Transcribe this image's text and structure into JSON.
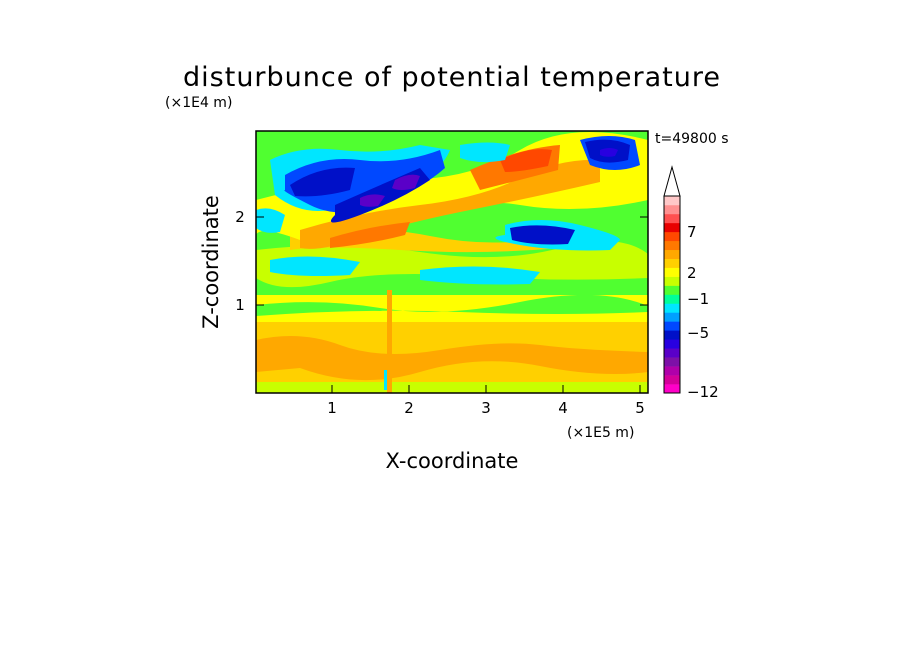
{
  "chart_data": {
    "type": "heatmap",
    "title": "disturbunce of potential temperature",
    "xlabel": "X-coordinate",
    "ylabel": "Z-coordinate",
    "x_unit": "(×1E5 m)",
    "y_unit": "(×1E4 m)",
    "time_label": "t=49800 s",
    "xlim": [
      0,
      5.1
    ],
    "ylim": [
      0,
      2.95
    ],
    "x_ticks": [
      "1",
      "2",
      "3",
      "4",
      "5"
    ],
    "y_ticks": [
      "1",
      "2"
    ],
    "grid": false,
    "legend_position": "right",
    "colorbar": {
      "labels": [
        "7",
        "2",
        "−1",
        "−5",
        "−12"
      ],
      "levels": [
        -12,
        -11,
        -10,
        -9,
        -8,
        -7,
        -6,
        -5,
        -4,
        -3,
        -2,
        -1,
        0,
        1,
        2,
        3,
        4,
        5,
        6,
        7,
        8,
        9,
        10
      ],
      "colors": [
        "#ff00c8",
        "#d4009a",
        "#b000aa",
        "#7d10a8",
        "#5a00c8",
        "#2800e0",
        "#0010c8",
        "#0048ff",
        "#00a0ff",
        "#00e6ff",
        "#00ff99",
        "#50ff30",
        "#c8ff00",
        "#ffff00",
        "#ffd000",
        "#ffa800",
        "#ff7800",
        "#ff4800",
        "#e80000",
        "#ff5050",
        "#ff9090",
        "#ffc8c8"
      ]
    },
    "features": [
      {
        "x": 1.75,
        "z": 2.35,
        "value": -6,
        "type": "cold anomaly"
      },
      {
        "x": 1.7,
        "z": 1.85,
        "value": 5,
        "type": "warm anomaly"
      },
      {
        "x": 3.4,
        "z": 2.55,
        "value": 6,
        "type": "warm anomaly"
      },
      {
        "x": 3.7,
        "z": 1.75,
        "value": -5,
        "type": "cold anomaly"
      },
      {
        "x": 4.5,
        "z": 2.7,
        "value": -5,
        "type": "cold anomaly"
      },
      {
        "x": 2.5,
        "z": 0.5,
        "value": 3,
        "type": "warm layer"
      }
    ]
  }
}
